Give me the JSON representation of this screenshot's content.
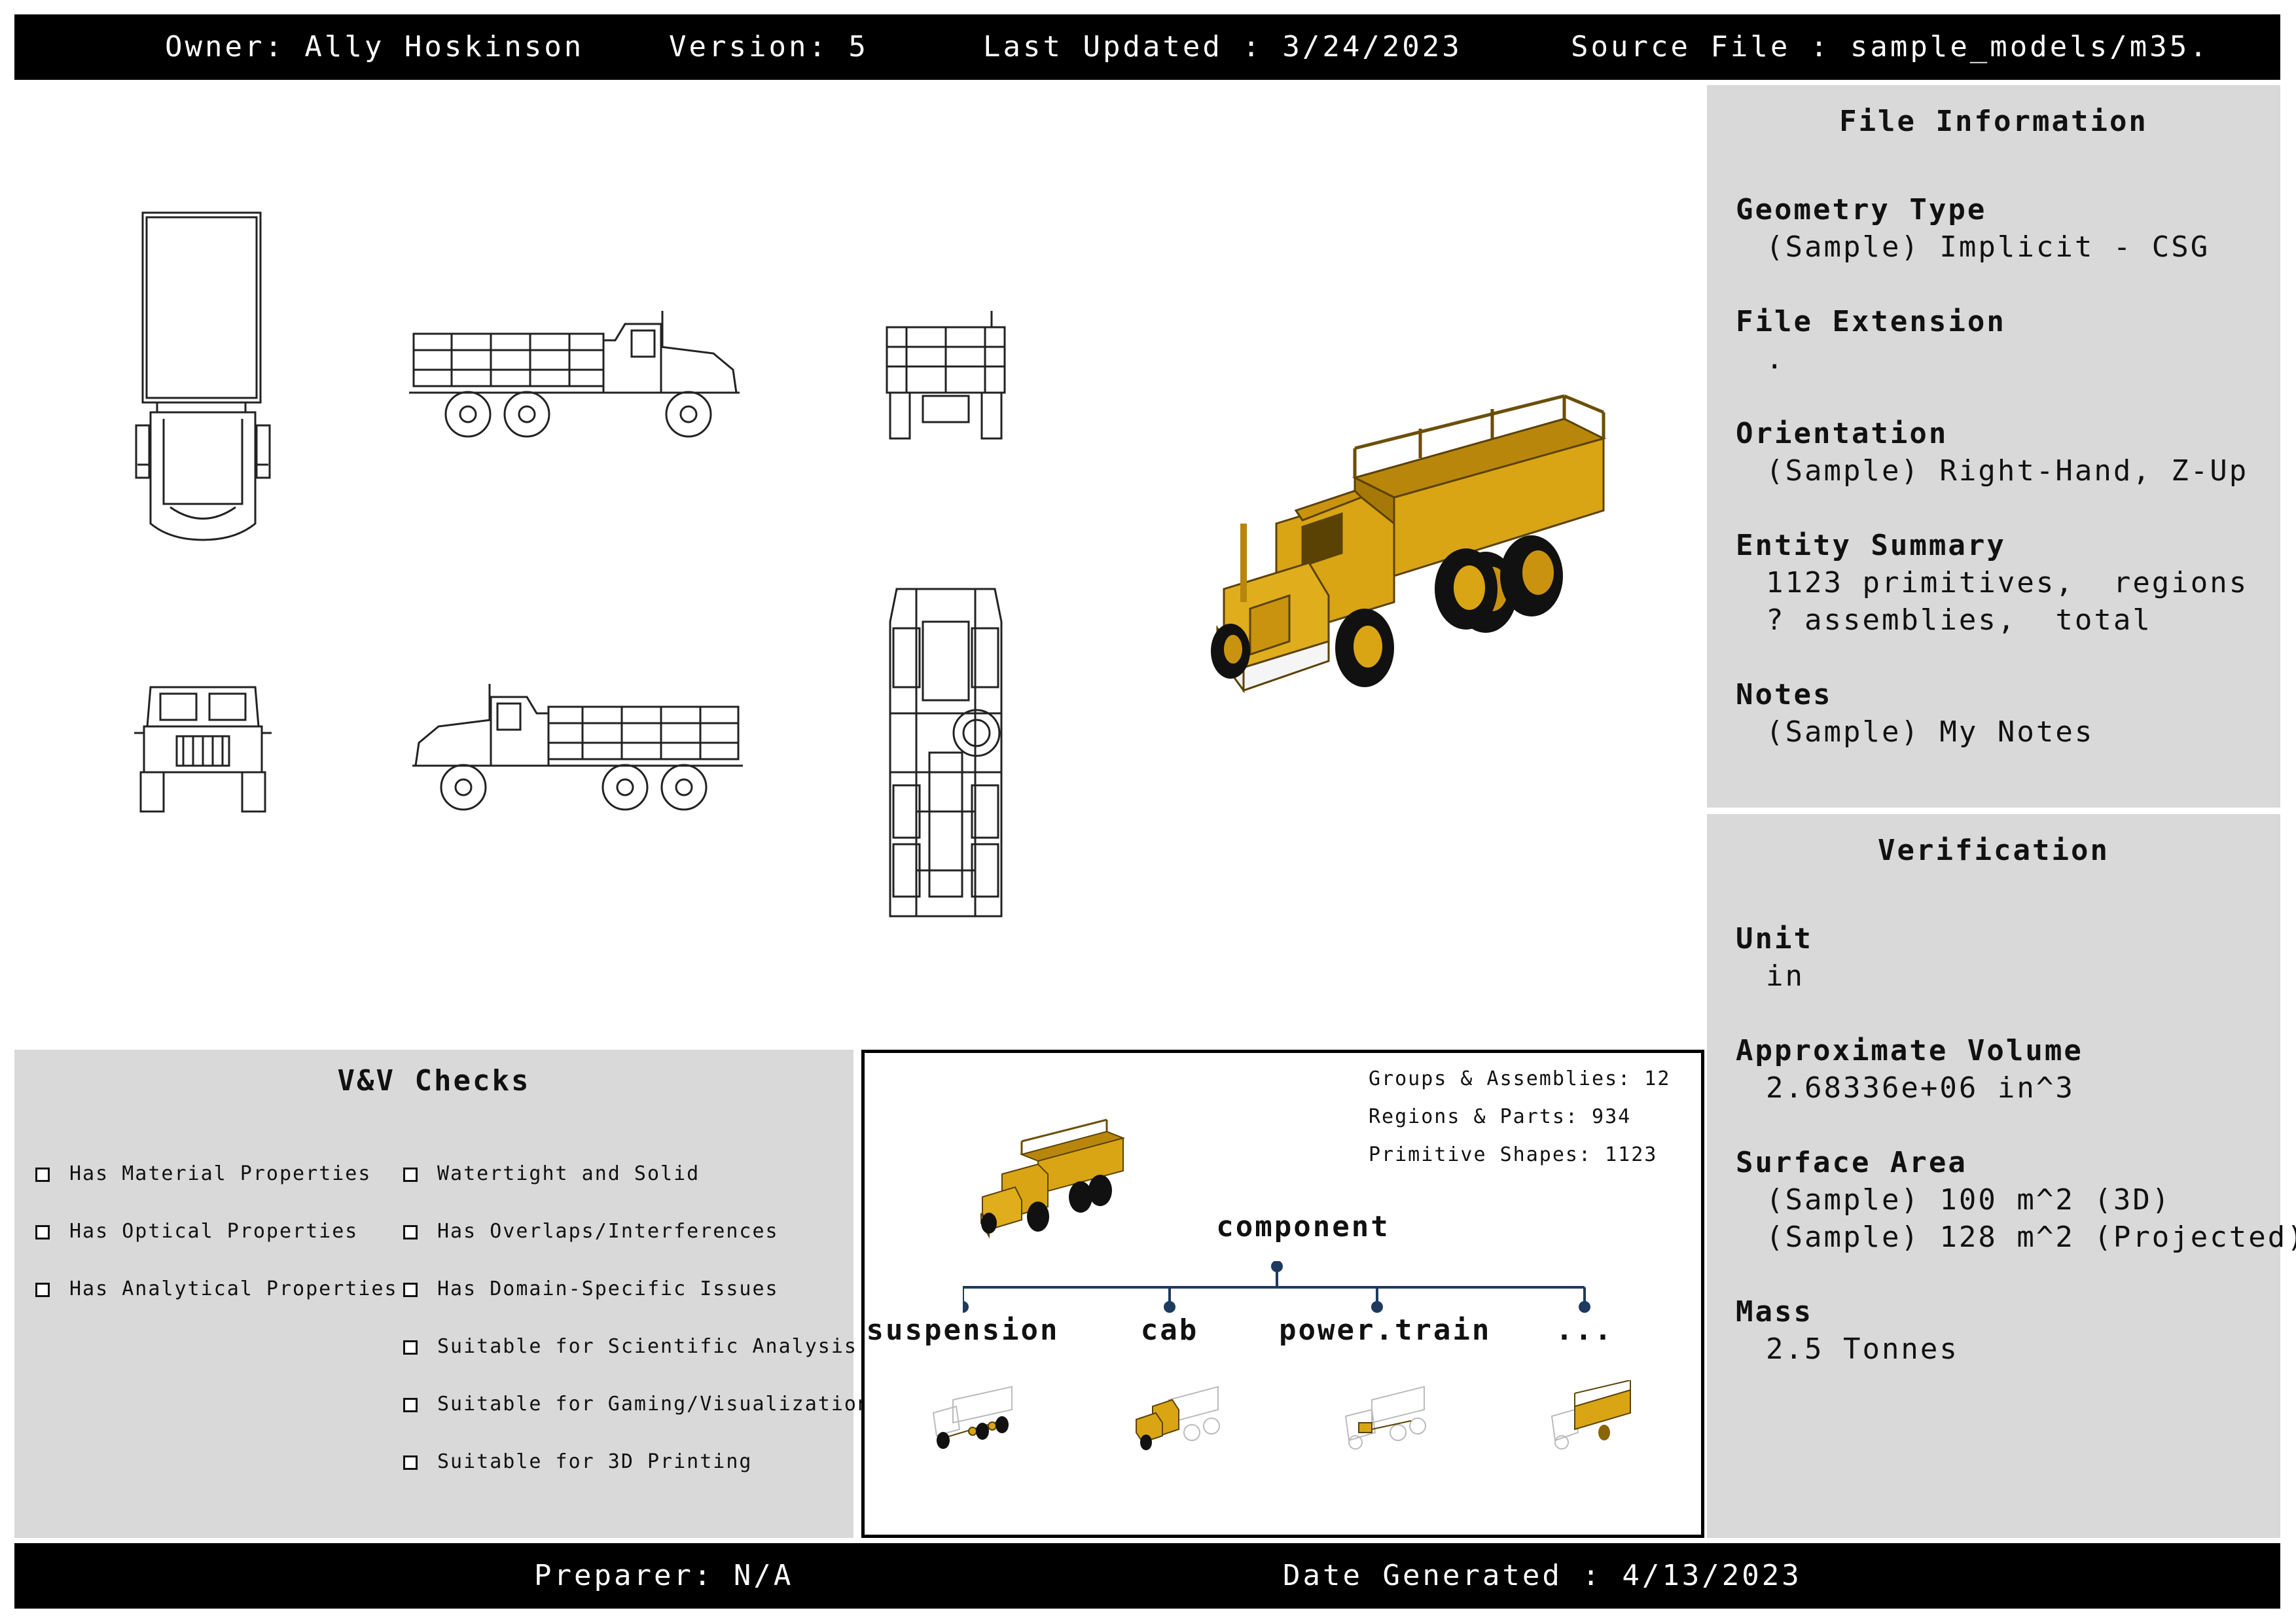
{
  "header": {
    "owner": "Owner: Ally Hoskinson",
    "version": "Version: 5",
    "last_updated": "Last Updated : 3/24/2023",
    "source_file": "Source File : sample_models/m35."
  },
  "file_info": {
    "title": "File Information",
    "geometry_type_label": "Geometry Type",
    "geometry_type_value": "(Sample) Implicit - CSG",
    "file_extension_label": "File Extension",
    "file_extension_value": ".",
    "orientation_label": "Orientation",
    "orientation_value": "(Sample) Right-Hand, Z-Up",
    "entity_summary_label": "Entity Summary",
    "entity_summary_line1": "1123 primitives,  regions",
    "entity_summary_line2": "? assemblies,  total",
    "notes_label": "Notes",
    "notes_value": "(Sample) My Notes"
  },
  "verification": {
    "title": "Verification",
    "unit_label": "Unit",
    "unit_value": "in",
    "volume_label": "Approximate Volume",
    "volume_value": "2.68336e+06 in^3",
    "surface_area_label": "Surface Area",
    "surface_area_3d": "(Sample) 100 m^2 (3D)",
    "surface_area_projected": "(Sample) 128 m^2 (Projected)",
    "mass_label": "Mass",
    "mass_value": "2.5 Tonnes"
  },
  "vv_checks": {
    "title": "V&V Checks",
    "left_items": [
      "Has Material Properties",
      "Has Optical Properties",
      "Has Analytical Properties"
    ],
    "right_items": [
      "Watertight and Solid",
      "Has Overlaps/Interferences",
      "Has Domain-Specific Issues",
      "Suitable for Scientific Analysis",
      "Suitable for Gaming/Visualization",
      "Suitable for 3D Printing"
    ]
  },
  "hierarchy": {
    "groups": "Groups & Assemblies: 12",
    "regions": "Regions & Parts: 934",
    "primitives": "Primitive Shapes: 1123",
    "root": "component",
    "children": [
      "suspension",
      "cab",
      "power.train",
      "..."
    ]
  },
  "footer": {
    "preparer": "Preparer: N/A",
    "date_generated": "Date Generated : 4/13/2023"
  },
  "colors": {
    "truck_yellow": "#d9a514",
    "truck_dark": "#8a6508",
    "panel_gray": "#d9d9d9",
    "tree_line": "#1f3a5f"
  }
}
